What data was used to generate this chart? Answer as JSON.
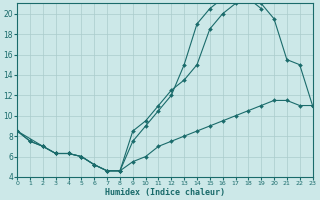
{
  "xlabel": "Humidex (Indice chaleur)",
  "bg_color": "#cce8e8",
  "grid_color": "#aacccc",
  "line_color": "#1a6b6b",
  "xlim": [
    0,
    23
  ],
  "ylim": [
    4,
    21
  ],
  "xticks": [
    0,
    1,
    2,
    3,
    4,
    5,
    6,
    7,
    8,
    9,
    10,
    11,
    12,
    13,
    14,
    15,
    16,
    17,
    18,
    19,
    20,
    21,
    22,
    23
  ],
  "yticks": [
    4,
    6,
    8,
    10,
    12,
    14,
    16,
    18,
    20
  ],
  "line1_x": [
    0,
    1,
    2,
    3,
    4,
    5,
    6,
    7,
    8,
    9,
    10,
    11,
    12,
    13,
    14,
    15,
    16,
    17,
    18,
    19,
    20,
    21,
    22,
    23
  ],
  "line1_y": [
    8.5,
    7.5,
    7.0,
    6.3,
    6.3,
    6.0,
    5.2,
    4.6,
    4.6,
    8.5,
    9.5,
    11.0,
    12.5,
    13.5,
    15.0,
    18.5,
    20.0,
    21.0,
    21.2,
    21.0,
    19.5,
    15.5,
    15.0,
    11.0
  ],
  "line2_x": [
    0,
    1,
    2,
    3,
    4,
    5,
    6,
    7,
    8,
    9,
    10,
    11,
    12,
    13,
    14,
    15,
    16,
    17,
    18,
    19,
    20,
    21,
    22,
    23
  ],
  "line2_y": [
    8.5,
    7.5,
    7.0,
    6.3,
    6.3,
    6.0,
    5.2,
    4.6,
    4.6,
    7.5,
    9.0,
    10.5,
    12.0,
    15.0,
    19.0,
    20.5,
    21.5,
    21.5,
    21.5,
    20.5,
    null,
    null,
    null,
    null
  ],
  "line3_x": [
    0,
    2,
    3,
    4,
    5,
    6,
    7,
    8,
    9,
    10,
    11,
    12,
    13,
    14,
    15,
    16,
    17,
    18,
    19,
    20,
    21,
    22,
    23
  ],
  "line3_y": [
    8.5,
    7.0,
    6.3,
    6.3,
    6.0,
    5.2,
    4.6,
    4.6,
    5.5,
    6.0,
    7.0,
    7.5,
    8.0,
    8.5,
    9.0,
    9.5,
    10.0,
    10.5,
    11.0,
    11.5,
    11.5,
    11.0,
    11.0
  ]
}
